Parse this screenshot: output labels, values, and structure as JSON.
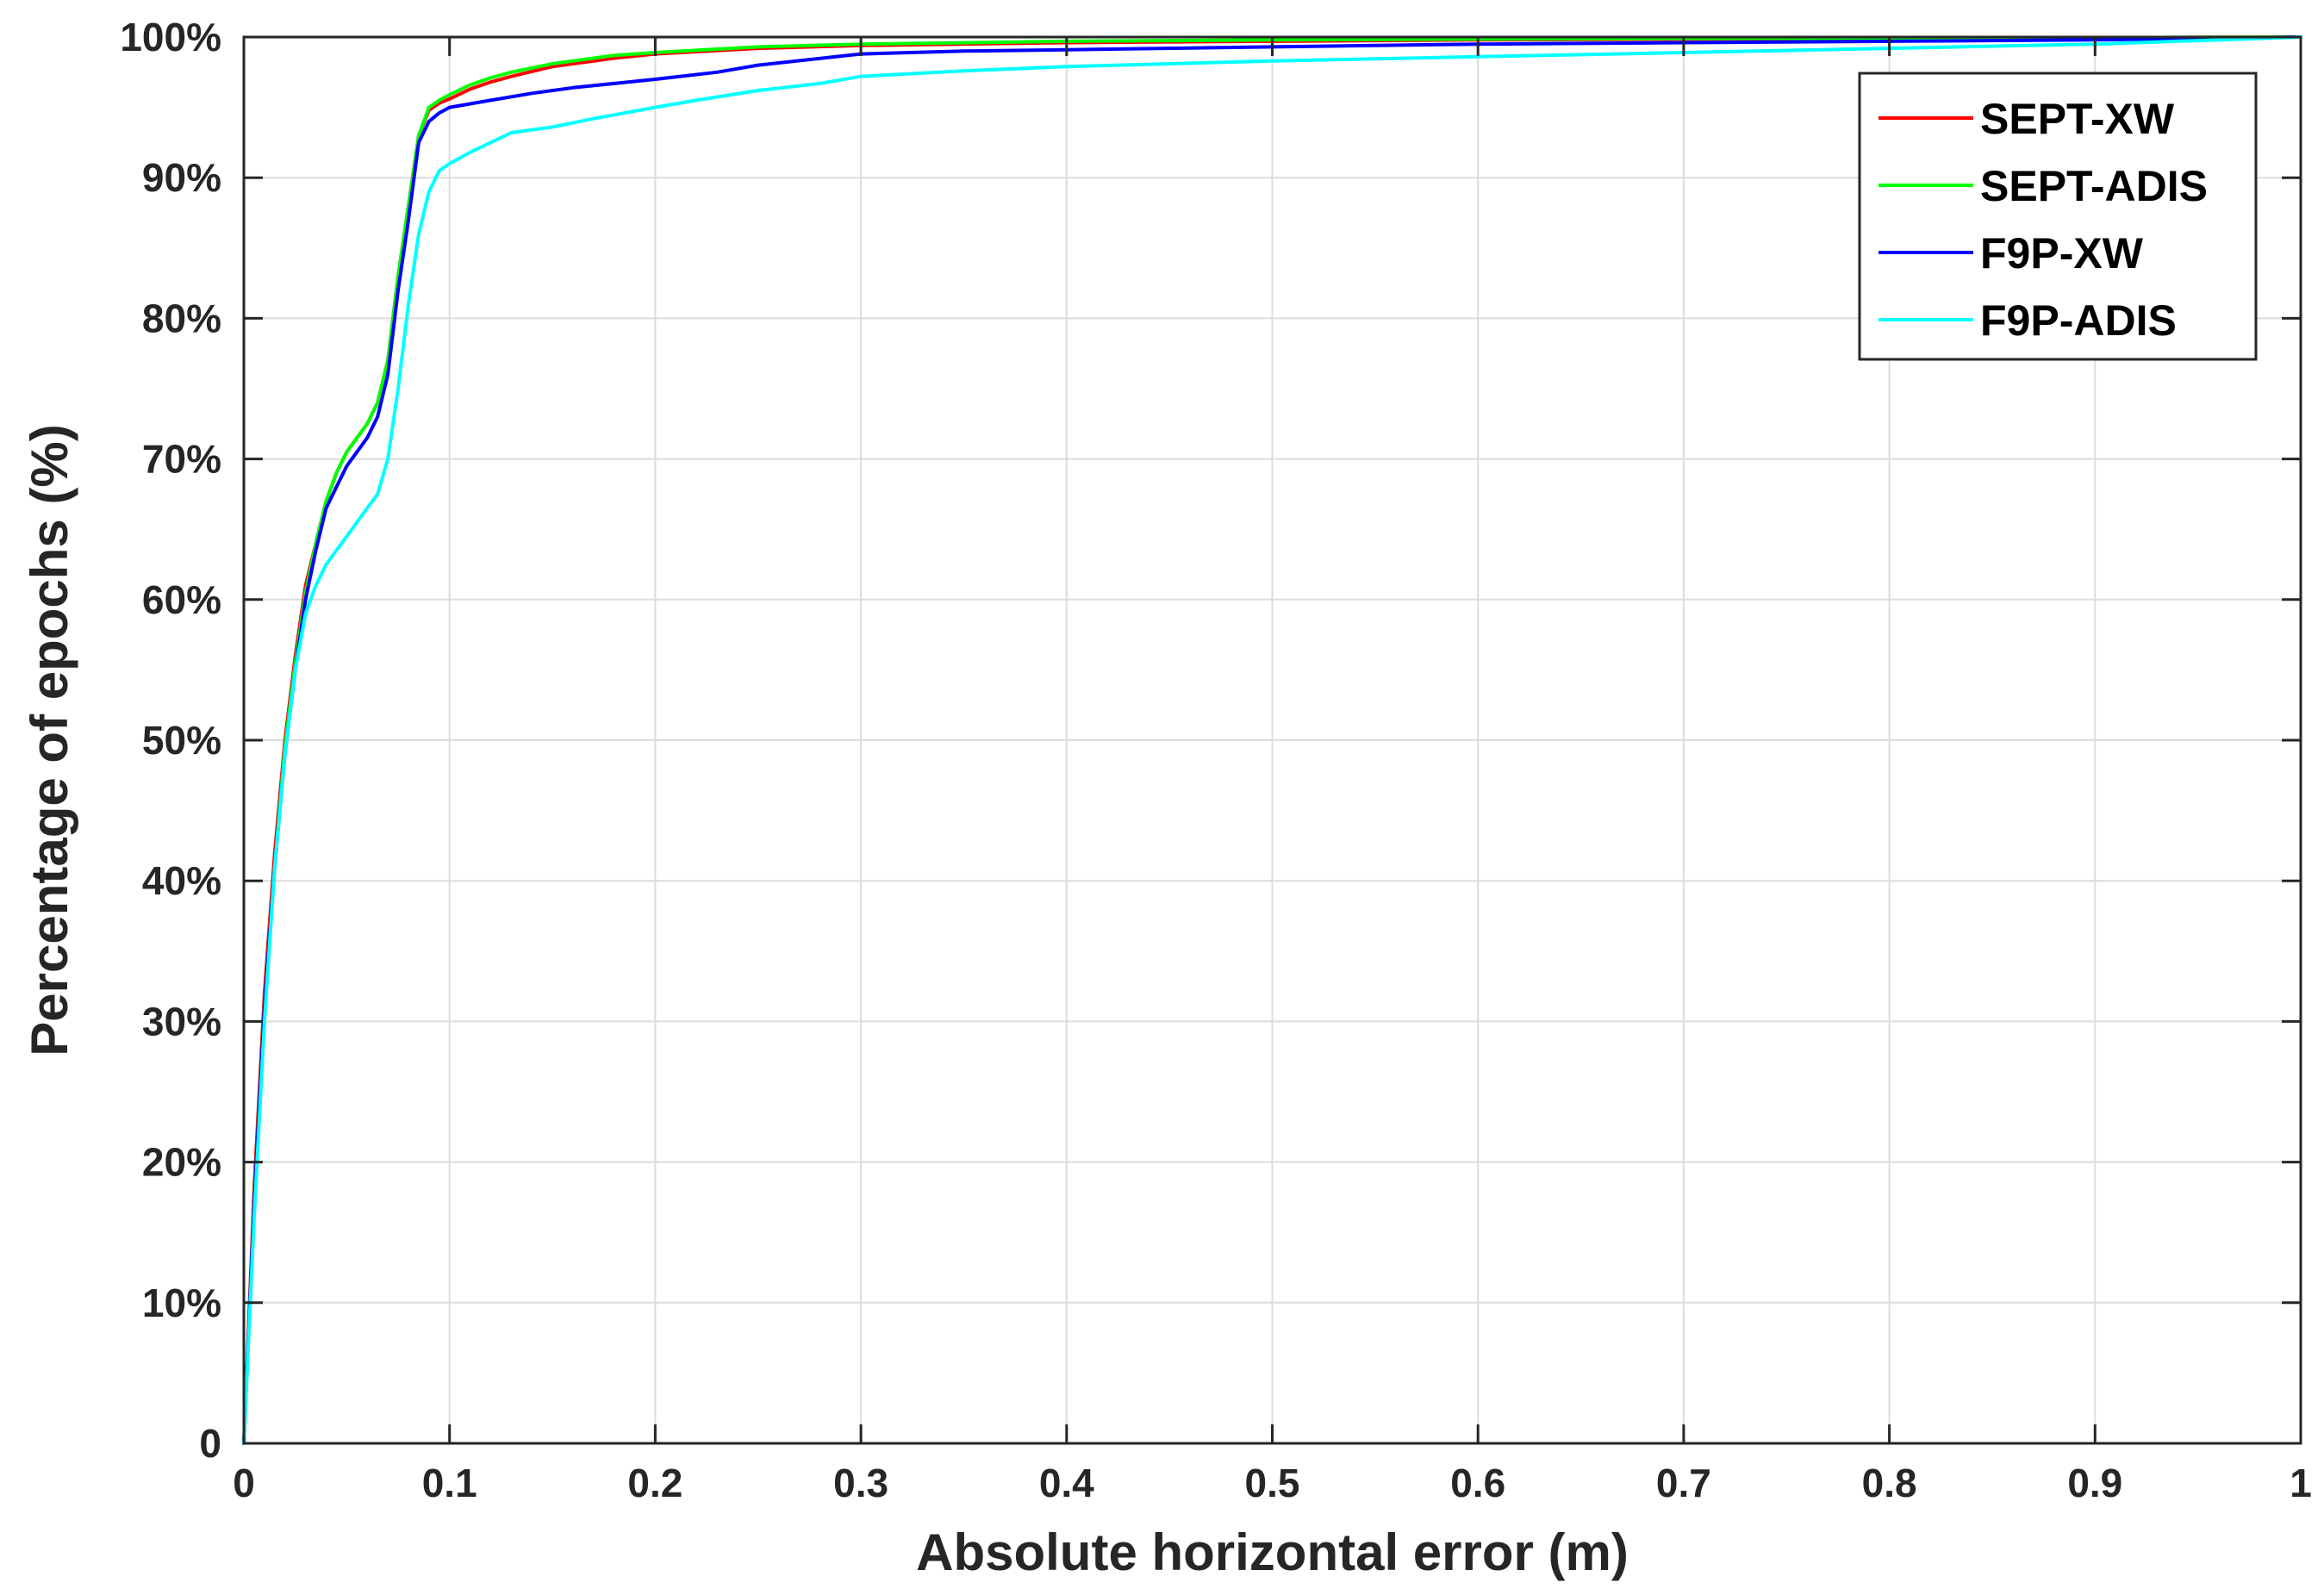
{
  "chart_data": {
    "type": "line",
    "xlabel": "Absolute horizontal error (m)",
    "ylabel": "Percentage of epochs (%)",
    "xlim": [
      0,
      1
    ],
    "ylim": [
      0,
      100
    ],
    "xticks": [
      0,
      0.1,
      0.2,
      0.3,
      0.4,
      0.5,
      0.6,
      0.7,
      0.8,
      0.9,
      1
    ],
    "xtick_labels": [
      "0",
      "0.1",
      "0.2",
      "0.3",
      "0.4",
      "0.5",
      "0.6",
      "0.7",
      "0.8",
      "0.9",
      "1"
    ],
    "yticks": [
      0,
      10,
      20,
      30,
      40,
      50,
      60,
      70,
      80,
      90,
      100
    ],
    "ytick_labels": [
      "0",
      "10%",
      "20%",
      "30%",
      "40%",
      "50%",
      "60%",
      "70%",
      "80%",
      "90%",
      "100%"
    ],
    "grid": true,
    "legend_position": "top-right",
    "series": [
      {
        "name": "SEPT-XW",
        "color": "#ff0000",
        "x": [
          0,
          0.005,
          0.01,
          0.015,
          0.02,
          0.025,
          0.03,
          0.035,
          0.04,
          0.045,
          0.05,
          0.055,
          0.06,
          0.065,
          0.07,
          0.075,
          0.08,
          0.085,
          0.09,
          0.095,
          0.1,
          0.11,
          0.12,
          0.13,
          0.15,
          0.18,
          0.2,
          0.25,
          0.3,
          0.4,
          0.5,
          0.6,
          0.7,
          0.8,
          0.9,
          1.0
        ],
        "y": [
          0,
          18,
          32,
          42,
          50,
          56,
          61,
          64,
          67,
          69,
          70.5,
          71.5,
          72.5,
          74,
          77,
          83,
          88,
          93,
          94.8,
          95.3,
          95.6,
          96.3,
          96.8,
          97.2,
          97.9,
          98.5,
          98.8,
          99.2,
          99.4,
          99.6,
          99.7,
          99.8,
          99.85,
          99.9,
          99.95,
          100
        ]
      },
      {
        "name": "SEPT-ADIS",
        "color": "#00ff00",
        "x": [
          0,
          0.005,
          0.01,
          0.015,
          0.02,
          0.025,
          0.03,
          0.035,
          0.04,
          0.045,
          0.05,
          0.055,
          0.06,
          0.065,
          0.07,
          0.075,
          0.08,
          0.085,
          0.09,
          0.095,
          0.1,
          0.11,
          0.12,
          0.13,
          0.15,
          0.18,
          0.2,
          0.25,
          0.3,
          0.4,
          0.5,
          0.6,
          0.7,
          0.8,
          0.9,
          1.0
        ],
        "y": [
          0,
          17,
          31,
          41,
          49.5,
          55.5,
          60.5,
          64,
          67,
          69,
          70.5,
          71.5,
          72.5,
          74,
          77,
          83,
          88,
          93,
          95,
          95.5,
          95.9,
          96.6,
          97.1,
          97.5,
          98.1,
          98.7,
          98.9,
          99.3,
          99.5,
          99.7,
          99.8,
          99.85,
          99.9,
          99.92,
          99.96,
          100
        ]
      },
      {
        "name": "F9P-XW",
        "color": "#0000ff",
        "x": [
          0,
          0.005,
          0.01,
          0.015,
          0.02,
          0.025,
          0.03,
          0.035,
          0.04,
          0.045,
          0.05,
          0.055,
          0.06,
          0.065,
          0.07,
          0.075,
          0.08,
          0.085,
          0.09,
          0.095,
          0.1,
          0.12,
          0.14,
          0.16,
          0.18,
          0.2,
          0.23,
          0.25,
          0.3,
          0.35,
          0.4,
          0.5,
          0.6,
          0.7,
          0.8,
          0.9,
          1.0
        ],
        "y": [
          0,
          17,
          31,
          41,
          49,
          55,
          60,
          63.5,
          66.5,
          68,
          69.5,
          70.5,
          71.5,
          73,
          76,
          82,
          87,
          92.5,
          94,
          94.6,
          95,
          95.5,
          96,
          96.4,
          96.7,
          97,
          97.5,
          98,
          98.8,
          99,
          99.1,
          99.3,
          99.5,
          99.6,
          99.7,
          99.8,
          100
        ]
      },
      {
        "name": "F9P-ADIS",
        "color": "#00ffff",
        "x": [
          0,
          0.005,
          0.01,
          0.015,
          0.02,
          0.025,
          0.03,
          0.035,
          0.04,
          0.045,
          0.05,
          0.055,
          0.06,
          0.065,
          0.07,
          0.075,
          0.08,
          0.085,
          0.09,
          0.095,
          0.1,
          0.11,
          0.12,
          0.13,
          0.15,
          0.17,
          0.2,
          0.22,
          0.25,
          0.28,
          0.3,
          0.35,
          0.4,
          0.5,
          0.6,
          0.7,
          0.8,
          0.9,
          1.0
        ],
        "y": [
          0,
          16,
          30,
          41,
          49,
          55,
          59,
          61,
          62.5,
          63.5,
          64.5,
          65.5,
          66.5,
          67.5,
          70,
          75,
          81,
          86,
          89,
          90.5,
          91,
          91.8,
          92.5,
          93.2,
          93.6,
          94.2,
          95,
          95.5,
          96.2,
          96.7,
          97.2,
          97.6,
          97.9,
          98.3,
          98.6,
          98.9,
          99.2,
          99.5,
          100
        ]
      }
    ]
  }
}
